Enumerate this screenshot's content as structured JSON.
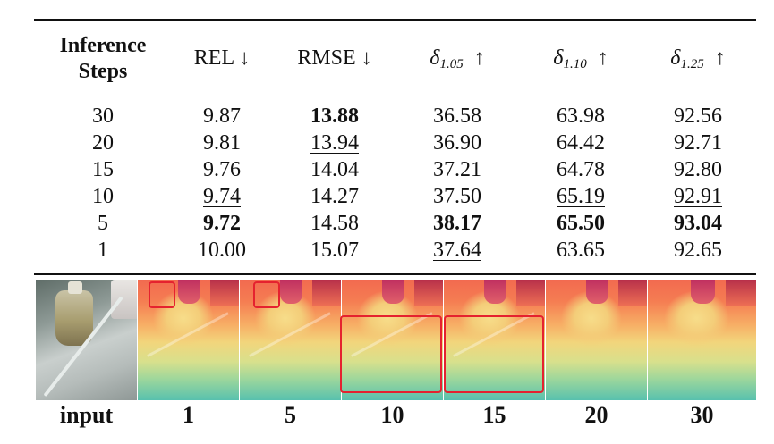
{
  "table": {
    "headers": {
      "steps_line1": "Inference",
      "steps_line2": "Steps",
      "rel": "REL ↓",
      "rmse": "RMSE ↓",
      "d105_sym": "δ",
      "d105_sub": "1.05",
      "d110_sym": "δ",
      "d110_sub": "1.10",
      "d125_sym": "δ",
      "d125_sub": "1.25",
      "up_arrow": "↑"
    },
    "rows": [
      {
        "steps": "30",
        "rel": "9.87",
        "rmse": "13.88",
        "d105": "36.58",
        "d110": "63.98",
        "d125": "92.56"
      },
      {
        "steps": "20",
        "rel": "9.81",
        "rmse": "13.94",
        "d105": "36.90",
        "d110": "64.42",
        "d125": "92.71"
      },
      {
        "steps": "15",
        "rel": "9.76",
        "rmse": "14.04",
        "d105": "37.21",
        "d110": "64.78",
        "d125": "92.80"
      },
      {
        "steps": "10",
        "rel": "9.74",
        "rmse": "14.27",
        "d105": "37.50",
        "d110": "65.19",
        "d125": "92.91"
      },
      {
        "steps": "5",
        "rel": "9.72",
        "rmse": "14.58",
        "d105": "38.17",
        "d110": "65.50",
        "d125": "93.04"
      },
      {
        "steps": "1",
        "rel": "10.00",
        "rmse": "15.07",
        "d105": "37.64",
        "d110": "63.65",
        "d125": "92.65"
      }
    ],
    "emphasis": {
      "bold": [
        "0.rmse",
        "4.rel",
        "4.d105",
        "4.d110",
        "4.d125"
      ],
      "underline": [
        "1.rmse",
        "3.rel",
        "5.d105",
        "3.d110",
        "3.d125"
      ]
    }
  },
  "figure": {
    "labels": [
      "input",
      "1",
      "5",
      "10",
      "15",
      "20",
      "30"
    ],
    "highlight_color": "#e5222f"
  }
}
